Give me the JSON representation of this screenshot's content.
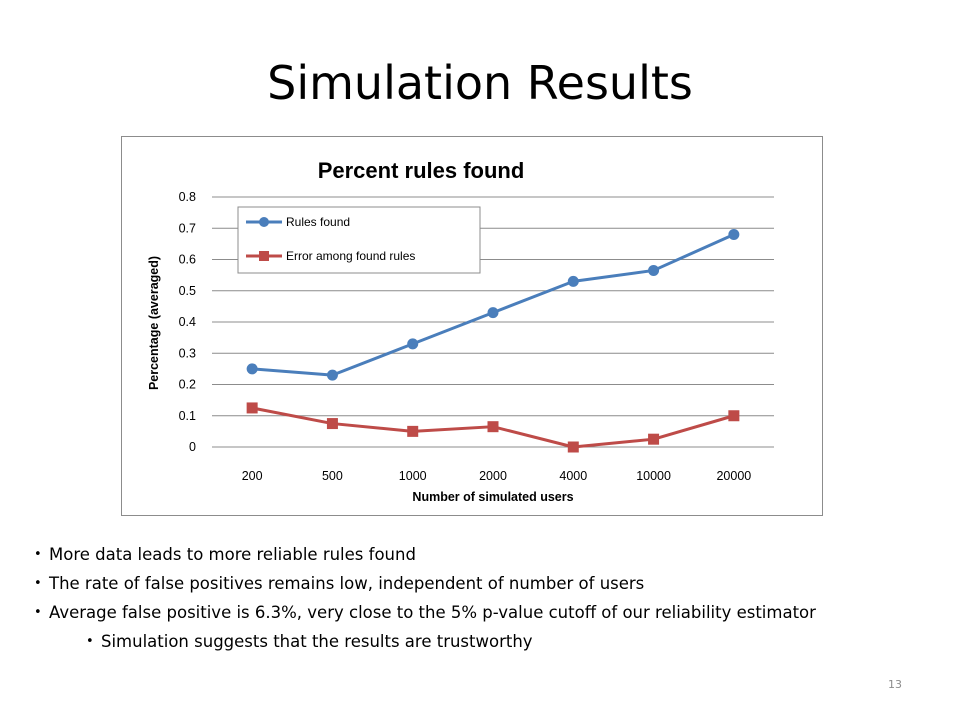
{
  "slide": {
    "title": "Simulation Results",
    "page_number": "13"
  },
  "bullets": [
    {
      "text": "More data leads to more reliable rules found",
      "level": 1
    },
    {
      "text": "The rate of false positives remains low, independent of number of users",
      "level": 1
    },
    {
      "text": "Average false positive is 6.3%, very close to the 5% p-value cutoff of our reliability estimator",
      "level": 1
    },
    {
      "text": "Simulation suggests that the results are trustworthy",
      "level": 2
    }
  ],
  "chart_data": {
    "type": "line",
    "title": "Percent rules found",
    "xlabel": "Number of simulated users",
    "ylabel": "Percentage (averaged)",
    "categories": [
      "200",
      "500",
      "1000",
      "2000",
      "4000",
      "10000",
      "20000"
    ],
    "ylim": [
      0,
      0.8
    ],
    "yticks": [
      "0",
      "0.1",
      "0.2",
      "0.3",
      "0.4",
      "0.5",
      "0.6",
      "0.7",
      "0.8"
    ],
    "grid": true,
    "legend_position": "top-left",
    "series": [
      {
        "name": "Rules found",
        "color": "#4a7ebb",
        "marker": "circle",
        "values": [
          0.25,
          0.23,
          0.33,
          0.43,
          0.53,
          0.565,
          0.68
        ]
      },
      {
        "name": "Error among found rules",
        "color": "#be4b48",
        "marker": "square",
        "values": [
          0.125,
          0.075,
          0.05,
          0.065,
          0.0,
          0.025,
          0.1
        ]
      }
    ]
  }
}
